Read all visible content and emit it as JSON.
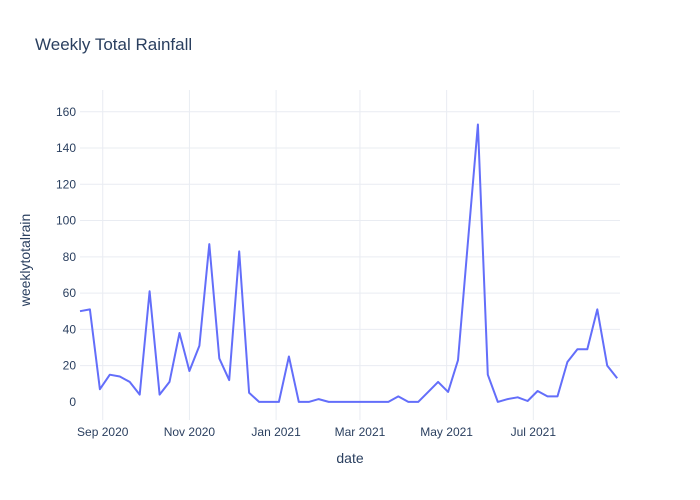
{
  "chart_data": {
    "type": "line",
    "title": "Weekly Total Rainfall",
    "xlabel": "date",
    "ylabel": "weeklytotalrain",
    "x_ticks": [
      {
        "date": "2020-09-01",
        "label": "Sep 2020"
      },
      {
        "date": "2020-11-01",
        "label": "Nov 2020"
      },
      {
        "date": "2021-01-01",
        "label": "Jan 2021"
      },
      {
        "date": "2021-03-01",
        "label": "Mar 2021"
      },
      {
        "date": "2021-05-01",
        "label": "May 2021"
      },
      {
        "date": "2021-07-01",
        "label": "Jul 2021"
      }
    ],
    "y_ticks": [
      0,
      20,
      40,
      60,
      80,
      100,
      120,
      140,
      160
    ],
    "xlim": [
      "2020-08-16",
      "2021-08-31"
    ],
    "ylim": [
      -10,
      172
    ],
    "grid": true,
    "legend": false,
    "line_color": "#636efa",
    "series": [
      {
        "x": [
          "2020-08-16",
          "2020-08-23",
          "2020-08-30",
          "2020-09-06",
          "2020-09-13",
          "2020-09-20",
          "2020-09-27",
          "2020-10-04",
          "2020-10-11",
          "2020-10-18",
          "2020-10-25",
          "2020-11-01",
          "2020-11-08",
          "2020-11-15",
          "2020-11-22",
          "2020-11-29",
          "2020-12-06",
          "2020-12-13",
          "2020-12-20",
          "2020-12-27",
          "2021-01-03",
          "2021-01-10",
          "2021-01-17",
          "2021-01-24",
          "2021-01-31",
          "2021-02-07",
          "2021-02-14",
          "2021-02-21",
          "2021-02-28",
          "2021-03-07",
          "2021-03-14",
          "2021-03-21",
          "2021-03-28",
          "2021-04-04",
          "2021-04-11",
          "2021-04-18",
          "2021-04-25",
          "2021-05-02",
          "2021-05-09",
          "2021-05-16",
          "2021-05-23",
          "2021-05-30",
          "2021-06-06",
          "2021-06-13",
          "2021-06-20",
          "2021-06-27",
          "2021-07-04",
          "2021-07-11",
          "2021-07-18",
          "2021-07-25",
          "2021-08-01",
          "2021-08-08",
          "2021-08-15",
          "2021-08-22",
          "2021-08-29"
        ],
        "y": [
          50,
          51,
          7,
          15,
          14,
          11,
          4,
          61,
          4,
          11,
          38,
          17,
          31,
          87,
          24,
          12,
          83,
          5,
          0,
          0,
          0,
          25,
          0,
          0,
          1.5,
          0,
          0,
          0,
          0,
          0,
          0,
          0,
          3,
          0,
          0,
          5.5,
          11,
          5.5,
          23,
          88,
          153,
          15,
          0,
          1.5,
          2.5,
          0.5,
          6,
          3,
          3,
          22,
          29,
          29,
          51,
          20,
          13
        ]
      }
    ]
  }
}
